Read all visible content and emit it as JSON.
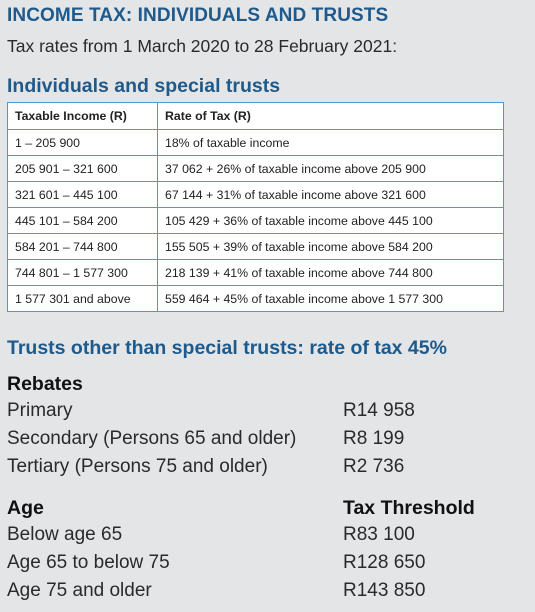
{
  "title": "INCOME TAX: INDIVIDUALS AND TRUSTS",
  "subtitle": "Tax rates from 1 March 2020 to 28 February 2021:",
  "individuals": {
    "heading": "Individuals and special trusts",
    "columns": [
      "Taxable Income (R)",
      "Rate of Tax (R)"
    ],
    "rows": [
      [
        "1 – 205 900",
        "18% of taxable income"
      ],
      [
        "205 901 – 321 600",
        "37 062 + 26% of taxable income above  205 900"
      ],
      [
        "321 601 – 445 100",
        "67 144 + 31% of taxable income above  321 600"
      ],
      [
        "445 101 – 584 200",
        "105 429 + 36% of taxable income above  445 100"
      ],
      [
        "584 201 – 744 800",
        "155 505 + 39% of taxable income above  584 200"
      ],
      [
        "744 801 – 1 577 300",
        "218 139 + 41% of taxable income above 744 800"
      ],
      [
        "1 577 301 and above",
        "559 464 + 45% of taxable income above 1 577 300"
      ]
    ]
  },
  "trusts_heading": "Trusts other than special trusts: rate of tax 45%",
  "rebates": {
    "heading": "Rebates",
    "items": [
      {
        "label": "Primary",
        "value": "R14 958"
      },
      {
        "label": "Secondary (Persons 65 and older)",
        "value": "R8 199"
      },
      {
        "label": "Tertiary (Persons 75 and older)",
        "value": "R2 736"
      }
    ]
  },
  "thresholds": {
    "heading_left": "Age",
    "heading_right": "Tax Threshold",
    "items": [
      {
        "label": "Below age 65",
        "value": "R83 100"
      },
      {
        "label": "Age 65 to below 75",
        "value": "R128 650"
      },
      {
        "label": "Age 75 and older",
        "value": "R143 850"
      }
    ]
  }
}
